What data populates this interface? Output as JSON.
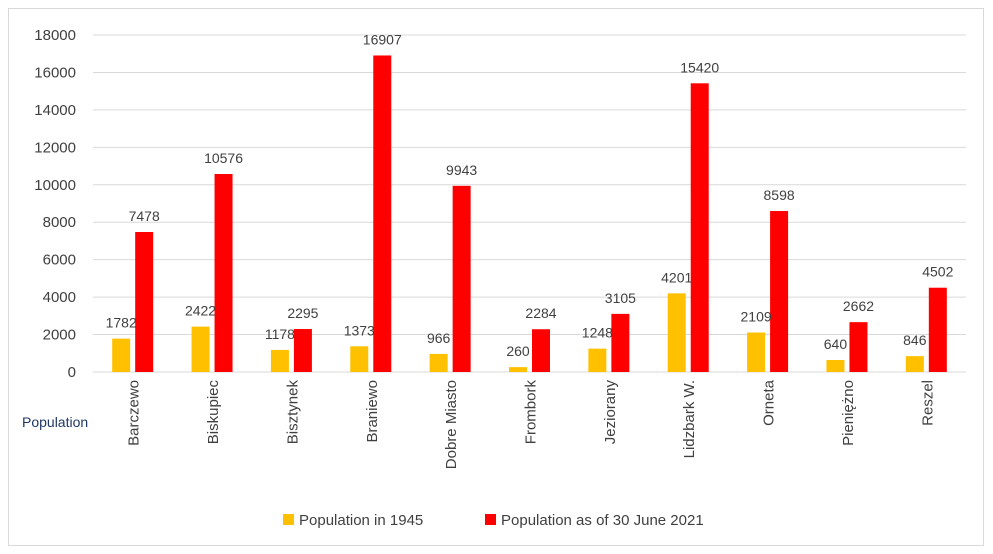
{
  "chart_data": {
    "type": "bar",
    "title": "",
    "ylabel": "Population",
    "xlabel": "",
    "ylim": [
      0,
      18000
    ],
    "yticks": [
      0,
      2000,
      4000,
      6000,
      8000,
      10000,
      12000,
      14000,
      16000,
      18000
    ],
    "grid": true,
    "legend_position": "bottom",
    "categories": [
      "Barczewo",
      "Biskupiec",
      "Bisztynek",
      "Braniewo",
      "Dobre Miasto",
      "Frombork",
      "Jeziorany",
      "Lidzbark W.",
      "Orneta",
      "Pieniężno",
      "Reszel"
    ],
    "series": [
      {
        "name": "Population in 1945",
        "color": "#ffc000",
        "values": [
          1782,
          2422,
          1178,
          1373,
          966,
          260,
          1248,
          4201,
          2109,
          640,
          846
        ]
      },
      {
        "name": "Population as of 30 June 2021",
        "color": "#ff0000",
        "values": [
          7478,
          10576,
          2295,
          16907,
          9943,
          2284,
          3105,
          15420,
          8598,
          2662,
          4502
        ]
      }
    ]
  }
}
